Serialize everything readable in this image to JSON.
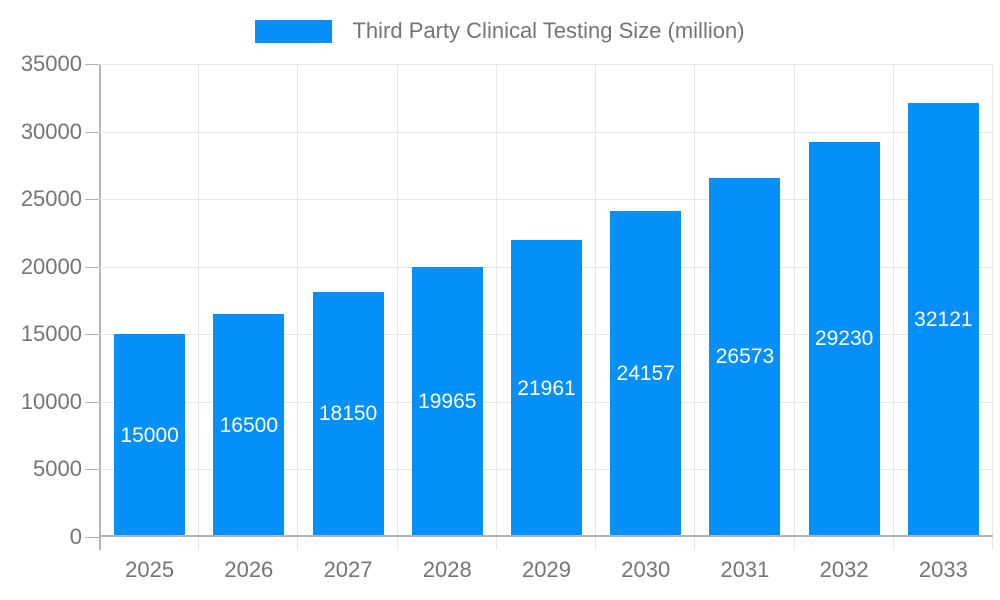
{
  "chart_data": {
    "type": "bar",
    "title": "Third Party Clinical Testing Size (million)",
    "categories": [
      "2025",
      "2026",
      "2027",
      "2028",
      "2029",
      "2030",
      "2031",
      "2032",
      "2033"
    ],
    "values": [
      15000,
      16500,
      18150,
      19965,
      21961,
      24157,
      26573,
      29230,
      32121
    ],
    "series": [
      {
        "name": "Third Party Clinical Testing Size (million)",
        "values": [
          15000,
          16500,
          18150,
          19965,
          21961,
          24157,
          26573,
          29230,
          32121
        ]
      }
    ],
    "xlabel": "",
    "ylabel": "",
    "ylim": [
      0,
      35000
    ],
    "ytick_step": 5000,
    "yticks": [
      0,
      5000,
      10000,
      15000,
      20000,
      25000,
      30000,
      35000
    ],
    "grid": true,
    "legend_position": "top-center",
    "value_labels_position": "inside-middle",
    "colors": {
      "bar": "#058ffa",
      "bar_value_label": "#ffffff",
      "axis_text": "#757575",
      "gridline": "#e6e6e6",
      "axis_line": "#b3b3b3",
      "background": "#ffffff"
    }
  }
}
